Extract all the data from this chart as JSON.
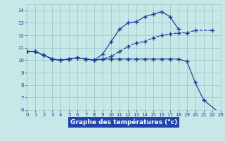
{
  "title": "Graphe des températures (°c)",
  "bg_color": "#c8e8e8",
  "grid_color": "#9ec8c8",
  "line_color": "#1a3a9a",
  "xlabel_bg": "#2244aa",
  "xlabel_fg": "#ffffff",
  "xlim": [
    0,
    23
  ],
  "ylim": [
    6,
    14.5
  ],
  "xticks": [
    0,
    1,
    2,
    3,
    4,
    5,
    6,
    7,
    8,
    9,
    10,
    11,
    12,
    13,
    14,
    15,
    16,
    17,
    18,
    19,
    20,
    21,
    22,
    23
  ],
  "yticks": [
    6,
    7,
    8,
    9,
    10,
    11,
    12,
    13,
    14
  ],
  "series1_x": [
    0,
    1,
    2,
    3,
    4,
    5,
    6,
    7,
    8,
    9,
    10,
    11,
    12,
    13,
    14,
    15,
    16,
    17,
    18,
    19,
    20,
    22
  ],
  "series1_y": [
    10.7,
    10.7,
    10.4,
    10.1,
    10.0,
    10.1,
    10.2,
    10.1,
    10.0,
    10.1,
    10.3,
    10.7,
    11.1,
    11.4,
    11.5,
    11.8,
    12.0,
    12.1,
    12.2,
    12.2,
    12.4,
    12.4
  ],
  "series2_x": [
    0,
    1,
    2,
    3,
    4,
    5,
    6,
    7,
    8,
    9,
    10,
    11,
    12,
    13,
    14,
    15,
    16,
    17,
    18
  ],
  "series2_y": [
    10.7,
    10.7,
    10.4,
    10.1,
    10.0,
    10.1,
    10.2,
    10.1,
    10.0,
    10.5,
    11.5,
    12.5,
    13.0,
    13.1,
    13.5,
    13.7,
    13.9,
    13.5,
    12.5
  ],
  "series3_x": [
    0,
    1,
    2,
    3,
    4,
    5,
    6,
    7,
    8,
    9,
    10,
    11,
    12,
    13,
    14,
    15,
    16,
    17,
    18,
    19,
    20,
    21,
    23
  ],
  "series3_y": [
    10.7,
    10.7,
    10.4,
    10.1,
    10.0,
    10.1,
    10.2,
    10.1,
    10.0,
    10.1,
    10.1,
    10.1,
    10.1,
    10.1,
    10.1,
    10.1,
    10.1,
    10.1,
    10.1,
    9.9,
    8.2,
    6.8,
    5.7
  ]
}
